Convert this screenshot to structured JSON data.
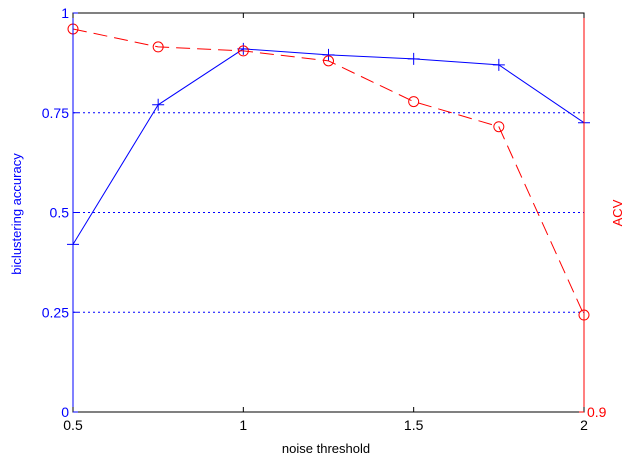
{
  "chart_data": {
    "type": "line",
    "xlabel": "noise threshold",
    "ylabel_left": "biclustering accuracy",
    "ylabel_right": "ACV",
    "xlim": [
      0.5,
      2
    ],
    "ylim_left": [
      0,
      1
    ],
    "ylim_right": [
      0.9,
      1.0
    ],
    "x_ticks": [
      0.5,
      1,
      1.5,
      2
    ],
    "x_tick_labels": [
      "0.5",
      "1",
      "1.5",
      "2"
    ],
    "y_left_ticks": [
      0,
      0.25,
      0.5,
      0.75,
      1
    ],
    "y_left_tick_labels": [
      "0",
      "0.25",
      "0.5",
      "0.75",
      "1"
    ],
    "y_right_ticks": [
      0.9
    ],
    "y_right_tick_labels": [
      "0.9"
    ],
    "grid": "horizontal dotted at left-axis ticks",
    "x": [
      0.5,
      0.75,
      1,
      1.25,
      1.5,
      1.75,
      2
    ],
    "series": [
      {
        "axis": "left",
        "color": "#0000ff",
        "line_style": "solid",
        "marker": "plus",
        "values": [
          0.42,
          0.77,
          0.91,
          0.895,
          0.885,
          0.87,
          0.725
        ]
      },
      {
        "axis": "right",
        "color": "#ff0000",
        "line_style": "dashed",
        "marker": "circle",
        "values": [
          0.996,
          0.9915,
          0.9905,
          0.988,
          0.9778,
          0.9715,
          0.9243
        ]
      }
    ]
  }
}
